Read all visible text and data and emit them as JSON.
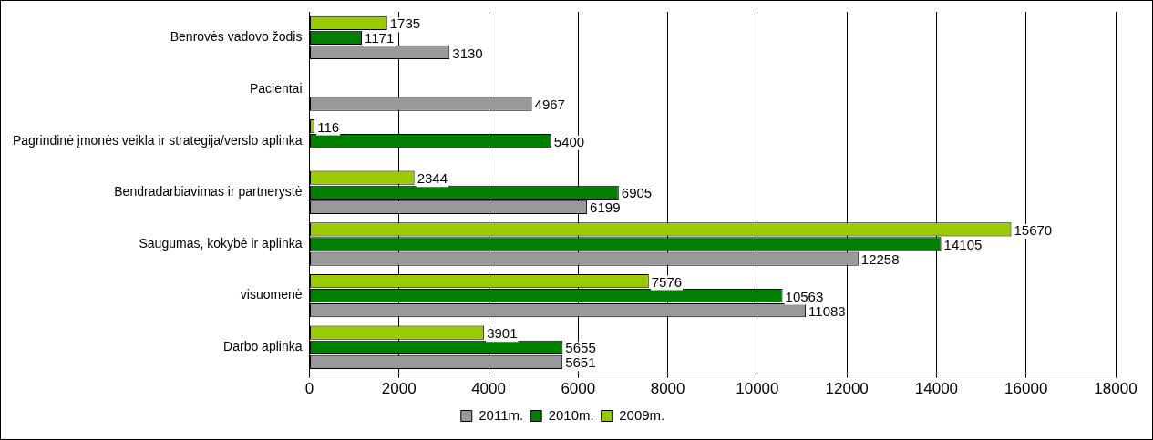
{
  "chart_data": {
    "type": "bar",
    "orientation": "horizontal",
    "categories": [
      "Benrovės vadovo žodis",
      "Pacientai",
      "Pagrindinė įmonės veikla ir strategija/verslo aplinka",
      "Bendradarbiavimas ir partnerystė",
      "Saugumas, kokybė ir aplinka",
      "visuomenė",
      "Darbo aplinka"
    ],
    "series": [
      {
        "name": "2011m.",
        "color": "#999999",
        "values": [
          3130,
          4967,
          null,
          6199,
          12258,
          11083,
          5651
        ]
      },
      {
        "name": "2010m.",
        "color": "#008000",
        "values": [
          1171,
          null,
          5400,
          6905,
          14105,
          10563,
          5655
        ]
      },
      {
        "name": "2009m.",
        "color": "#99cc00",
        "values": [
          1735,
          null,
          116,
          2344,
          15670,
          7576,
          3901
        ]
      }
    ],
    "xlim": [
      0,
      18000
    ],
    "xticks": [
      0,
      2000,
      4000,
      6000,
      8000,
      10000,
      12000,
      14000,
      16000,
      18000
    ],
    "grid": "x",
    "legend": "bottom",
    "data_labels": true
  }
}
